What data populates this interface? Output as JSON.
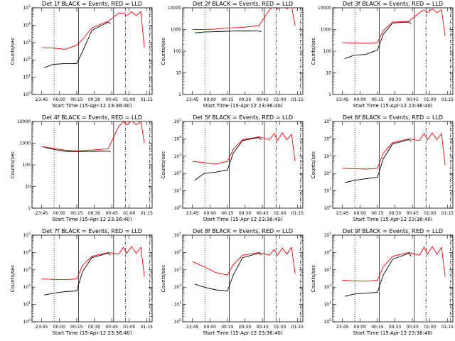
{
  "xticks": [
    "23:45",
    "00:00",
    "00:15",
    "00:30",
    "00:45",
    "01:00",
    "01:15"
  ],
  "xlabel": "Start Time (15-Apr-12 23:36:40)",
  "ylabel": "Counts/sec",
  "colors": {
    "events": "#000000",
    "lld": "#ff0000"
  },
  "chart_data": [
    {
      "type": "line",
      "title": "Det 1f BLACK = Events, RED = LLD",
      "ytick_labels": [
        "10^0",
        "10^1",
        "10^2",
        "10^3",
        "10^4",
        "10^5"
      ],
      "ylim": [
        1,
        100000
      ],
      "series": [
        {
          "x": [
            "23:47",
            "23:55",
            "00:05",
            "00:15",
            "00:20",
            "00:28",
            "00:42",
            "00:44"
          ],
          "y": [
            35,
            55,
            60,
            60,
            300,
            5000,
            15000,
            12000
          ]
        },
        {
          "x": [
            "23:45",
            "23:55",
            "00:05",
            "00:15",
            "00:20",
            "00:28",
            "00:42",
            "00:51",
            "00:55",
            "00:58",
            "01:02",
            "01:06",
            "01:10",
            "01:13"
          ],
          "y": [
            500,
            480,
            400,
            700,
            1500,
            7000,
            17000,
            50000,
            50000,
            35000,
            60000,
            35000,
            60000,
            500
          ]
        }
      ]
    },
    {
      "type": "line",
      "title": "Det 2f BLACK = Events, RED = LLD",
      "ytick_labels": [
        "1",
        "10",
        "100",
        "1000",
        "10000"
      ],
      "ylim": [
        1,
        10000
      ],
      "series": [
        {
          "x": [
            "23:47",
            "23:55",
            "00:05",
            "00:15",
            "00:20",
            "00:28",
            "00:42",
            "00:44"
          ],
          "y": [
            700,
            760,
            790,
            830,
            850,
            860,
            850,
            780
          ]
        },
        {
          "x": [
            "23:45",
            "23:55",
            "00:05",
            "00:15",
            "00:20",
            "00:28",
            "00:42",
            "00:51",
            "00:55",
            "00:58",
            "01:02",
            "01:06",
            "01:10",
            "01:13"
          ],
          "y": [
            1000,
            1000,
            1050,
            1150,
            1200,
            1250,
            1500,
            8000,
            12000,
            9000,
            13000,
            9000,
            12000,
            1500
          ]
        }
      ]
    },
    {
      "type": "line",
      "title": "Det 3f BLACK = Events, RED = LLD",
      "ytick_labels": [
        "1",
        "10",
        "100",
        "1000",
        "10000"
      ],
      "ylim": [
        1,
        10000
      ],
      "series": [
        {
          "x": [
            "23:47",
            "23:55",
            "00:05",
            "00:10",
            "00:15",
            "00:20",
            "00:28",
            "00:42",
            "00:44"
          ],
          "y": [
            45,
            65,
            70,
            90,
            110,
            600,
            2000,
            2200,
            1800
          ]
        },
        {
          "x": [
            "23:45",
            "23:55",
            "00:05",
            "00:15",
            "00:20",
            "00:28",
            "00:42",
            "00:51",
            "00:55",
            "00:58",
            "01:02",
            "01:06",
            "01:10",
            "01:13"
          ],
          "y": [
            250,
            240,
            230,
            250,
            900,
            2200,
            2400,
            6000,
            8000,
            6000,
            9000,
            6000,
            8000,
            500
          ]
        }
      ]
    },
    {
      "type": "line",
      "title": "Det 4f BLACK = Events, RED = LLD",
      "ytick_labels": [
        "1",
        "10",
        "100",
        "1000",
        "10000"
      ],
      "ylim": [
        1,
        10000
      ],
      "series": [
        {
          "x": [
            "23:47",
            "23:55",
            "00:05",
            "00:15",
            "00:20",
            "00:28",
            "00:42",
            "00:44"
          ],
          "y": [
            650,
            520,
            420,
            400,
            410,
            420,
            430,
            400
          ]
        },
        {
          "x": [
            "23:45",
            "23:55",
            "00:05",
            "00:15",
            "00:20",
            "00:28",
            "00:42",
            "00:51",
            "00:55",
            "00:58",
            "01:02",
            "01:06",
            "01:10",
            "01:13"
          ],
          "y": [
            700,
            580,
            470,
            450,
            460,
            480,
            550,
            6000,
            10000,
            7000,
            11000,
            7000,
            10000,
            1000
          ]
        }
      ]
    },
    {
      "type": "line",
      "title": "Det 5f BLACK = Events, RED = LLD",
      "ytick_labels": [
        "10^0",
        "10^1",
        "10^2",
        "10^3",
        "10^4",
        "10^5"
      ],
      "ylim": [
        1,
        100000
      ],
      "series": [
        {
          "x": [
            "23:47",
            "23:55",
            "00:05",
            "00:15",
            "00:20",
            "00:28",
            "00:42",
            "00:44"
          ],
          "y": [
            40,
            100,
            120,
            160,
            1500,
            8000,
            12000,
            9000
          ]
        },
        {
          "x": [
            "23:45",
            "23:55",
            "00:05",
            "00:15",
            "00:20",
            "00:28",
            "00:42",
            "00:51",
            "00:55",
            "00:58",
            "01:02",
            "01:06",
            "01:10",
            "01:13"
          ],
          "y": [
            500,
            420,
            350,
            500,
            2500,
            9000,
            13000,
            9000,
            20000,
            8000,
            22000,
            9000,
            18000,
            500
          ]
        }
      ]
    },
    {
      "type": "line",
      "title": "Det 6f BLACK = Events, RED = LLD",
      "ytick_labels": [
        "10^0",
        "10^1",
        "10^2",
        "10^3",
        "10^4",
        "10^5"
      ],
      "ylim": [
        1,
        100000
      ],
      "series": [
        {
          "x": [
            "23:47",
            "23:55",
            "00:05",
            "00:15",
            "00:20",
            "00:28",
            "00:42",
            "00:44"
          ],
          "y": [
            30,
            40,
            50,
            60,
            700,
            5000,
            9000,
            7000
          ]
        },
        {
          "x": [
            "23:45",
            "23:55",
            "00:05",
            "00:15",
            "00:20",
            "00:28",
            "00:42",
            "00:51",
            "00:55",
            "00:58",
            "01:02",
            "01:06",
            "01:10",
            "01:13"
          ],
          "y": [
            200,
            190,
            180,
            200,
            1500,
            6000,
            10000,
            8000,
            20000,
            9000,
            22000,
            9000,
            20000,
            300
          ]
        }
      ]
    },
    {
      "type": "line",
      "title": "Det 7f BLACK = Events, RED = LLD",
      "ytick_labels": [
        "10^0",
        "10^1",
        "10^2",
        "10^3",
        "10^4",
        "10^5"
      ],
      "ylim": [
        1,
        100000
      ],
      "series": [
        {
          "x": [
            "23:47",
            "23:55",
            "00:05",
            "00:15",
            "00:20",
            "00:28",
            "00:42",
            "00:44"
          ],
          "y": [
            35,
            45,
            55,
            60,
            800,
            5000,
            9000,
            7000
          ]
        },
        {
          "x": [
            "23:45",
            "23:55",
            "00:05",
            "00:15",
            "00:20",
            "00:28",
            "00:42",
            "00:51",
            "00:55",
            "00:58",
            "01:02",
            "01:06",
            "01:10",
            "01:13"
          ],
          "y": [
            300,
            280,
            270,
            300,
            1800,
            6000,
            10000,
            8000,
            20000,
            9000,
            22000,
            9000,
            20000,
            400
          ]
        }
      ]
    },
    {
      "type": "line",
      "title": "Det 8f BLACK = Events, RED = LLD",
      "ytick_labels": [
        "10^0",
        "10^1",
        "10^2",
        "10^3",
        "10^4",
        "10^5"
      ],
      "ylim": [
        1,
        100000
      ],
      "series": [
        {
          "x": [
            "23:47",
            "23:55",
            "00:05",
            "00:15",
            "00:20",
            "00:28",
            "00:42",
            "00:44"
          ],
          "y": [
            150,
            100,
            70,
            60,
            500,
            5000,
            9000,
            7000
          ]
        },
        {
          "x": [
            "23:45",
            "23:55",
            "00:05",
            "00:15",
            "00:20",
            "00:28",
            "00:42",
            "00:51",
            "00:55",
            "00:58",
            "01:02",
            "01:06",
            "01:10",
            "01:13"
          ],
          "y": [
            3000,
            1500,
            700,
            500,
            2000,
            7000,
            10000,
            7000,
            15000,
            7000,
            18000,
            8000,
            20000,
            600
          ]
        }
      ]
    },
    {
      "type": "line",
      "title": "Det 9f BLACK = Events, RED = LLD",
      "ytick_labels": [
        "10^0",
        "10^1",
        "10^2",
        "10^3",
        "10^4",
        "10^5"
      ],
      "ylim": [
        1,
        100000
      ],
      "series": [
        {
          "x": [
            "23:47",
            "23:55",
            "00:05",
            "00:15",
            "00:20",
            "00:28",
            "00:42",
            "00:44"
          ],
          "y": [
            30,
            40,
            45,
            50,
            500,
            4000,
            9000,
            6000
          ]
        },
        {
          "x": [
            "23:45",
            "23:55",
            "00:05",
            "00:15",
            "00:20",
            "00:28",
            "00:42",
            "00:51",
            "00:55",
            "00:58",
            "01:02",
            "01:06",
            "01:10",
            "01:13"
          ],
          "y": [
            250,
            230,
            220,
            250,
            1500,
            6000,
            10000,
            7000,
            20000,
            8000,
            22000,
            8000,
            20000,
            400
          ]
        }
      ]
    }
  ]
}
